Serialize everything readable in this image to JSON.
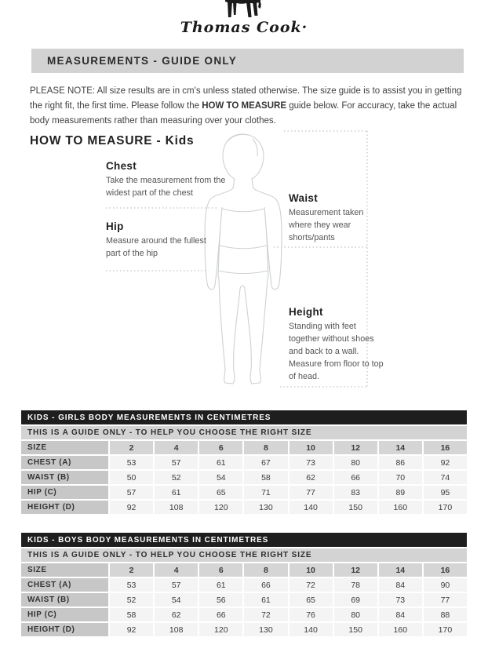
{
  "logo": {
    "icon": "horse-silhouette",
    "brand_script": "Thomas Cook·"
  },
  "banner": {
    "title": "MEASUREMENTS - GUIDE ONLY"
  },
  "note": {
    "prefix": "PLEASE NOTE:  All size results are in cm's unless stated otherwise. The size guide is to assist you in getting the right fit, the first time. Please follow the ",
    "bold": "HOW TO MEASURE",
    "suffix": " guide below. For accuracy, take the actual body measurements rather than measuring over your clothes."
  },
  "how_to_measure": {
    "heading": "HOW TO MEASURE - Kids",
    "labels": [
      {
        "name": "Chest",
        "description": "Take the measurement from the widest part of the chest"
      },
      {
        "name": "Hip",
        "description": "Measure around the fullest part of the hip"
      },
      {
        "name": "Waist",
        "description": "Measurement taken where they wear shorts/pants"
      },
      {
        "name": "Height",
        "description": "Standing with feet together without shoes and back to a wall. Measure from floor to top of head."
      }
    ]
  },
  "tables": [
    {
      "title": "KIDS - GIRLS BODY MEASUREMENTS IN CENTIMETRES",
      "subtitle": "THIS IS A GUIDE ONLY - TO HELP YOU CHOOSE THE RIGHT SIZE",
      "size_label": "SIZE",
      "sizes": [
        "2",
        "4",
        "6",
        "8",
        "10",
        "12",
        "14",
        "16"
      ],
      "rows": [
        {
          "label": "CHEST (A)",
          "values": [
            "53",
            "57",
            "61",
            "67",
            "73",
            "80",
            "86",
            "92"
          ]
        },
        {
          "label": "WAIST (B)",
          "values": [
            "50",
            "52",
            "54",
            "58",
            "62",
            "66",
            "70",
            "74"
          ]
        },
        {
          "label": "HIP (C)",
          "values": [
            "57",
            "61",
            "65",
            "71",
            "77",
            "83",
            "89",
            "95"
          ]
        },
        {
          "label": "HEIGHT (D)",
          "values": [
            "92",
            "108",
            "120",
            "130",
            "140",
            "150",
            "160",
            "170"
          ]
        }
      ]
    },
    {
      "title": "KIDS - BOYS BODY MEASUREMENTS IN CENTIMETRES",
      "subtitle": "THIS IS A GUIDE ONLY - TO HELP YOU CHOOSE THE RIGHT SIZE",
      "size_label": "SIZE",
      "sizes": [
        "2",
        "4",
        "6",
        "8",
        "10",
        "12",
        "14",
        "16"
      ],
      "rows": [
        {
          "label": "CHEST (A)",
          "values": [
            "53",
            "57",
            "61",
            "66",
            "72",
            "78",
            "84",
            "90"
          ]
        },
        {
          "label": "WAIST (B)",
          "values": [
            "52",
            "54",
            "56",
            "61",
            "65",
            "69",
            "73",
            "77"
          ]
        },
        {
          "label": "HIP (C)",
          "values": [
            "58",
            "62",
            "66",
            "72",
            "76",
            "80",
            "84",
            "88"
          ]
        },
        {
          "label": "HEIGHT (D)",
          "values": [
            "92",
            "108",
            "120",
            "130",
            "140",
            "150",
            "160",
            "170"
          ]
        }
      ]
    }
  ],
  "colors": {
    "table_header_bg": "#1e1e1e",
    "table_subheader_bg": "#d3d3d3",
    "banner_bg": "#d2d2d2",
    "label_cell_bg": "#c7c7c7",
    "size_cell_bg": "#d5d5d5",
    "data_cell_bg": "#f4f4f4",
    "figure_outline": "#cdd1d2"
  }
}
